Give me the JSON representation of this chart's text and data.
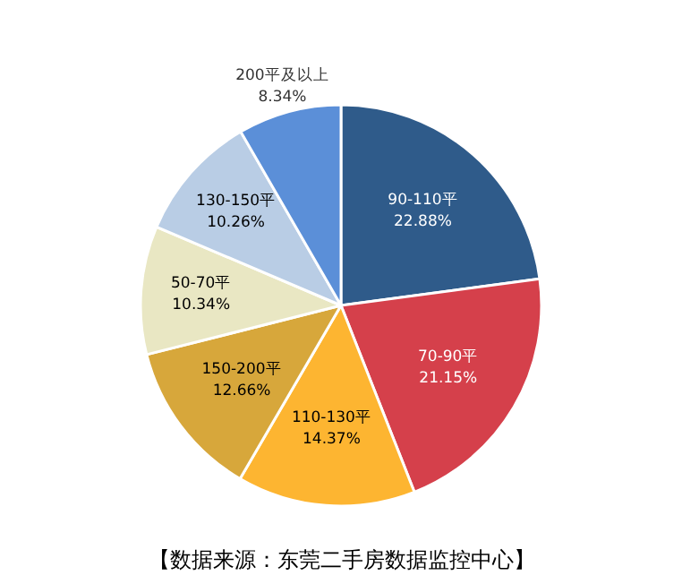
{
  "chart_data": {
    "type": "pie",
    "categories": [
      "90-110平",
      "70-90平",
      "110-130平",
      "150-200平",
      "50-70平",
      "130-150平",
      "200平及以上"
    ],
    "values": [
      22.88,
      21.15,
      14.37,
      12.66,
      10.34,
      10.26,
      8.34
    ],
    "value_labels": [
      "22.88%",
      "21.15%",
      "14.37%",
      "12.66%",
      "10.34%",
      "10.26%",
      "8.34%"
    ],
    "colors": [
      "#2f5b8a",
      "#d5404b",
      "#fdb531",
      "#d7a73b",
      "#e9e7c3",
      "#b9cde5",
      "#5b8fd8"
    ],
    "annotations": [
      "【数据来源：东莞二手房数据监控中心】"
    ]
  }
}
